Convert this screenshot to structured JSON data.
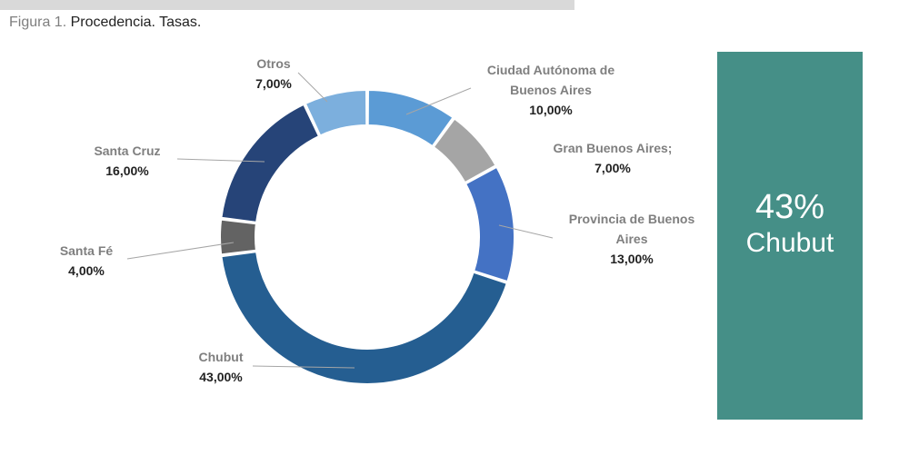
{
  "caption": {
    "prefix": "Figura 1.",
    "text": " Procedencia. Tasas."
  },
  "chart_data": {
    "type": "pie",
    "donut": true,
    "slices": [
      {
        "label": "Ciudad Autónoma de Buenos Aires",
        "label_lines": [
          "Ciudad Autónoma de",
          "Buenos Aires"
        ],
        "value": 10,
        "value_label": "10,00%",
        "color": "#5b9bd5"
      },
      {
        "label": "Gran Buenos Aires;",
        "label_lines": [
          "Gran Buenos Aires;"
        ],
        "value": 7,
        "value_label": "7,00%",
        "color": "#a5a5a5"
      },
      {
        "label": "Provincia de Buenos Aires",
        "label_lines": [
          "Provincia de Buenos",
          "Aires"
        ],
        "value": 13,
        "value_label": "13,00%",
        "color": "#4472c4"
      },
      {
        "label": "Chubut",
        "label_lines": [
          "Chubut"
        ],
        "value": 43,
        "value_label": "43,00%",
        "color": "#255e91"
      },
      {
        "label": "Santa Fé",
        "label_lines": [
          "Santa Fé"
        ],
        "value": 4,
        "value_label": "4,00%",
        "color": "#636363"
      },
      {
        "label": "Santa Cruz",
        "label_lines": [
          "Santa Cruz"
        ],
        "value": 16,
        "value_label": "16,00%",
        "color": "#264478"
      },
      {
        "label": "Otros",
        "label_lines": [
          "Otros"
        ],
        "value": 7,
        "value_label": "7,00%",
        "color": "#7cafdd"
      }
    ]
  },
  "callout": {
    "percent": "43%",
    "label": "Chubut",
    "color": "#458f87"
  }
}
